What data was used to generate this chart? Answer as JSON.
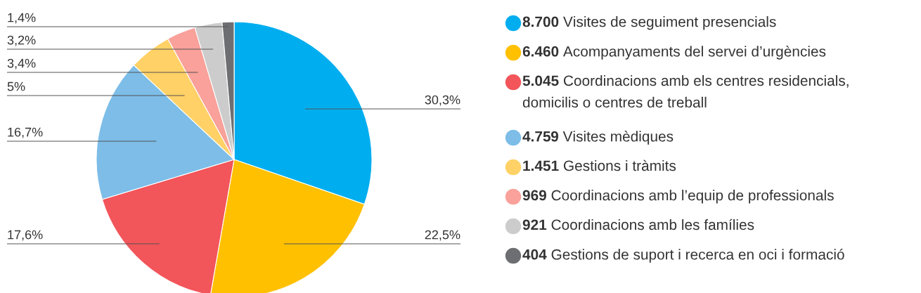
{
  "chart_data": {
    "type": "pie",
    "categories": [
      "8.700 Visites de seguiment presencials",
      "6.460 Acompanyaments del servei d’urgències",
      "5.045 Coordinacions amb els centres residencials,\ndomicilis o centres de treball",
      "4.759 Visites mèdiques",
      "1.451 Gestions i tràmits",
      "969 Coordinacions amb l’equip de professionals",
      "921 Coordinacions amb les famílies",
      "404 Gestions de suport i recerca en oci i formació"
    ],
    "values": [
      30.3,
      22.5,
      17.6,
      16.7,
      5,
      3.4,
      3.2,
      1.4
    ],
    "value_labels": [
      "30,3%",
      "22,5%",
      "17,6%",
      "16,7%",
      "5%",
      "3,4%",
      "3,2%",
      "1,4%"
    ],
    "colors": [
      "#00aeef",
      "#ffc000",
      "#f2555a",
      "#7dbde8",
      "#ffd166",
      "#f9a19a",
      "#cccccc",
      "#6d6e71"
    ],
    "legend": "right"
  }
}
